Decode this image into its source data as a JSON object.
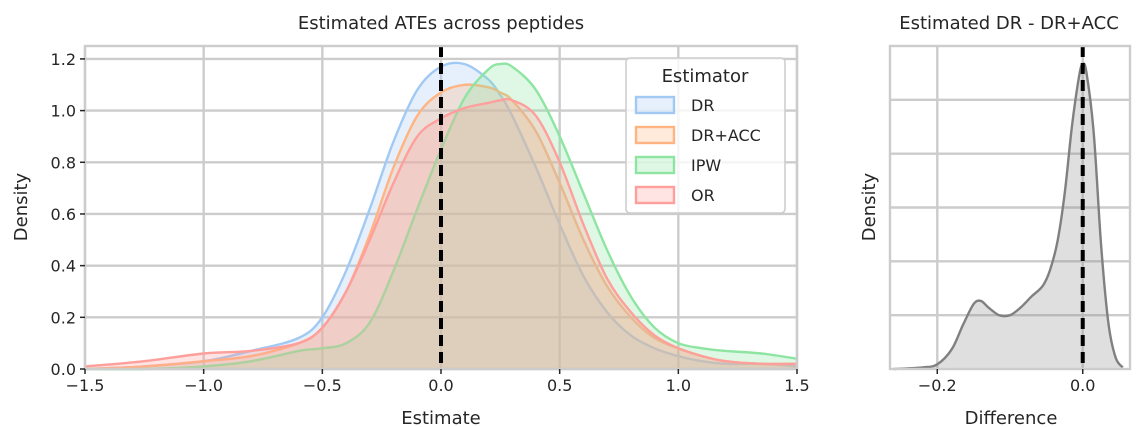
{
  "colors": {
    "DR": "#a1c9f4",
    "DR+ACC": "#ffb482",
    "IPW": "#8de5a1",
    "OR": "#ff9f9b",
    "difference": "#808080",
    "refline": "#000000",
    "grid": "#cccccc"
  },
  "chart_data": [
    {
      "type": "area",
      "title": "Estimated ATEs across peptides",
      "xlabel": "Estimate",
      "ylabel": "Density",
      "xlim": [
        -1.5,
        1.5
      ],
      "ylim": [
        0,
        1.25
      ],
      "xticks": [
        -1.5,
        -1.0,
        -0.5,
        0.0,
        0.5,
        1.0,
        1.5
      ],
      "xtick_labels": [
        "−1.5",
        "−1.0",
        "−0.5",
        "0.0",
        "0.5",
        "1.0",
        "1.5"
      ],
      "yticks": [
        0.0,
        0.2,
        0.4,
        0.6,
        0.8,
        1.0,
        1.2
      ],
      "ytick_labels": [
        "0.0",
        "0.2",
        "0.4",
        "0.6",
        "0.8",
        "1.0",
        "1.2"
      ],
      "grid": true,
      "reference_line": {
        "x": 0.0,
        "style": "dashed"
      },
      "legend": {
        "title": "Estimator",
        "placement": "top-right",
        "entries": [
          "DR",
          "DR+ACC",
          "IPW",
          "OR"
        ]
      },
      "x": [
        -1.5,
        -1.25,
        -1.0,
        -0.8,
        -0.6,
        -0.5,
        -0.4,
        -0.3,
        -0.2,
        -0.1,
        0.0,
        0.1,
        0.2,
        0.25,
        0.3,
        0.4,
        0.5,
        0.6,
        0.7,
        0.8,
        0.9,
        1.0,
        1.1,
        1.2,
        1.35,
        1.5
      ],
      "series": [
        {
          "name": "DR",
          "values": [
            0.0,
            0.01,
            0.03,
            0.07,
            0.12,
            0.2,
            0.38,
            0.62,
            0.88,
            1.08,
            1.17,
            1.18,
            1.12,
            1.06,
            0.98,
            0.78,
            0.56,
            0.36,
            0.22,
            0.13,
            0.08,
            0.05,
            0.03,
            0.02,
            0.02,
            0.01
          ]
        },
        {
          "name": "DR+ACC",
          "values": [
            0.0,
            0.01,
            0.03,
            0.05,
            0.1,
            0.16,
            0.3,
            0.52,
            0.78,
            0.98,
            1.07,
            1.1,
            1.09,
            1.07,
            1.04,
            0.92,
            0.72,
            0.5,
            0.32,
            0.2,
            0.12,
            0.08,
            0.05,
            0.03,
            0.02,
            0.02
          ]
        },
        {
          "name": "IPW",
          "values": [
            0.0,
            0.0,
            0.01,
            0.03,
            0.07,
            0.08,
            0.1,
            0.18,
            0.38,
            0.62,
            0.85,
            1.05,
            1.16,
            1.18,
            1.17,
            1.08,
            0.9,
            0.68,
            0.46,
            0.28,
            0.16,
            0.1,
            0.08,
            0.07,
            0.06,
            0.04
          ]
        },
        {
          "name": "OR",
          "values": [
            0.01,
            0.03,
            0.06,
            0.07,
            0.1,
            0.16,
            0.3,
            0.5,
            0.72,
            0.9,
            0.97,
            1.01,
            1.03,
            1.04,
            1.04,
            0.98,
            0.8,
            0.56,
            0.35,
            0.22,
            0.13,
            0.08,
            0.05,
            0.03,
            0.02,
            0.02
          ]
        }
      ]
    },
    {
      "type": "area",
      "title": "Estimated DR - DR+ACC",
      "xlabel": "Difference",
      "ylabel": "Density",
      "xlim": [
        -0.265,
        0.065
      ],
      "xticks": [
        -0.2,
        0.0
      ],
      "xtick_labels": [
        "−0.2",
        "0.0"
      ],
      "grid": true,
      "reference_line": {
        "x": 0.0,
        "style": "dashed"
      },
      "x": [
        -0.26,
        -0.22,
        -0.2,
        -0.18,
        -0.165,
        -0.15,
        -0.14,
        -0.13,
        -0.115,
        -0.1,
        -0.085,
        -0.07,
        -0.055,
        -0.045,
        -0.035,
        -0.025,
        -0.015,
        -0.005,
        0.0,
        0.005,
        0.015,
        0.025,
        0.035,
        0.045,
        0.055
      ],
      "series": [
        {
          "name": "",
          "values": [
            0.0,
            0.02,
            0.06,
            0.25,
            0.55,
            0.82,
            0.86,
            0.78,
            0.68,
            0.68,
            0.78,
            0.92,
            1.05,
            1.25,
            1.6,
            2.2,
            3.05,
            3.7,
            3.85,
            3.75,
            3.0,
            1.6,
            0.6,
            0.15,
            0.02
          ]
        }
      ]
    }
  ]
}
